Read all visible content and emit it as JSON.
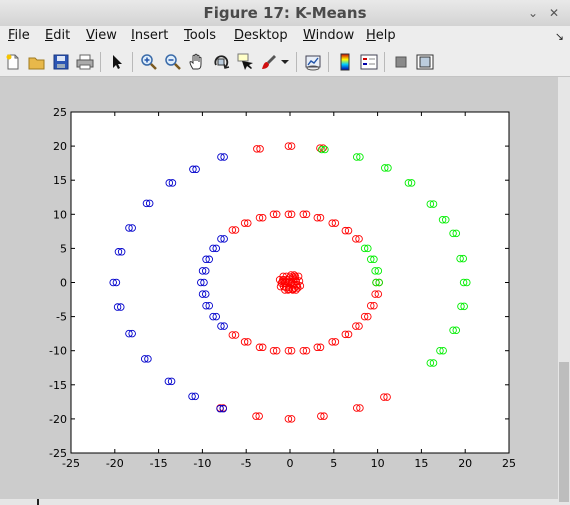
{
  "window": {
    "title": "Figure 17: K-Means"
  },
  "window_controls": [
    {
      "name": "collapse-icon",
      "glyph": "⌄"
    },
    {
      "name": "close-icon",
      "glyph": "✕"
    }
  ],
  "menu": [
    {
      "key": "file",
      "label": "File",
      "mn": "F",
      "rest": "ile"
    },
    {
      "key": "edit",
      "label": "Edit",
      "mn": "E",
      "rest": "dit"
    },
    {
      "key": "view",
      "label": "View",
      "mn": "V",
      "rest": "iew"
    },
    {
      "key": "insert",
      "label": "Insert",
      "mn": "I",
      "rest": "nsert"
    },
    {
      "key": "tools",
      "label": "Tools",
      "mn": "T",
      "rest": "ools"
    },
    {
      "key": "desktop",
      "label": "Desktop",
      "mn": "D",
      "rest": "esktop"
    },
    {
      "key": "window",
      "label": "Window",
      "mn": "W",
      "rest": "indow"
    },
    {
      "key": "help",
      "label": "Help",
      "mn": "H",
      "rest": "elp"
    }
  ],
  "toolbar": {
    "buttons": [
      "new-figure-icon",
      "open-file-icon",
      "save-icon",
      "print-icon",
      "edit-plot-arrow-icon",
      "zoom-in-icon",
      "zoom-out-icon",
      "pan-hand-icon",
      "rotate-3d-icon",
      "data-cursor-icon",
      "brush-icon",
      "brush-menu-chevron-icon",
      "link-plot-icon",
      "insert-colorbar-icon",
      "insert-legend-icon",
      "hide-plot-tools-icon",
      "show-plot-tools-icon"
    ]
  },
  "colors": {
    "cluster_red": "#ff0000",
    "cluster_green": "#00ee00",
    "cluster_blue": "#0000cc"
  },
  "chart_data": {
    "type": "scatter",
    "title": "",
    "xlabel": "",
    "ylabel": "",
    "xlim": [
      -25,
      25
    ],
    "ylim": [
      -25,
      25
    ],
    "xticks": [
      -25,
      -20,
      -15,
      -10,
      -5,
      0,
      5,
      10,
      15,
      20,
      25
    ],
    "yticks": [
      -25,
      -20,
      -15,
      -10,
      -5,
      0,
      5,
      10,
      15,
      20,
      25
    ],
    "grid": false,
    "marker": "open-circle",
    "structure": "three concentric rings (radius ~0-1, ~10, ~20), points clustered into 3 groups",
    "series": [
      {
        "color": "#ff0000",
        "points": [
          [
            0.2,
            0.8
          ],
          [
            -0.5,
            0.4
          ],
          [
            0.6,
            -0.3
          ],
          [
            -0.3,
            -0.7
          ],
          [
            0.9,
            0.2
          ],
          [
            -0.8,
            -0.1
          ],
          [
            0.1,
            -1.0
          ],
          [
            0.4,
            0.5
          ],
          [
            -0.6,
            0.9
          ],
          [
            0.7,
            -0.8
          ],
          [
            -0.2,
            0.1
          ],
          [
            1.0,
            -0.5
          ],
          [
            -1.0,
            0.4
          ],
          [
            0.3,
            1.1
          ],
          [
            -0.4,
            -1.1
          ],
          [
            0.8,
            0.9
          ],
          [
            -0.9,
            -0.6
          ],
          [
            0.0,
            0.0
          ],
          [
            0.5,
            -1.1
          ],
          [
            -0.7,
            0.1
          ],
          [
            0,
            10
          ],
          [
            1.7,
            10.0
          ],
          [
            3.3,
            9.5
          ],
          [
            5.0,
            8.7
          ],
          [
            6.5,
            7.6
          ],
          [
            7.7,
            6.4
          ],
          [
            -1.7,
            10.0
          ],
          [
            -3.3,
            9.5
          ],
          [
            -5.0,
            8.7
          ],
          [
            -6.4,
            7.7
          ],
          [
            0,
            -10
          ],
          [
            1.7,
            -10.0
          ],
          [
            3.3,
            -9.5
          ],
          [
            5.0,
            -8.7
          ],
          [
            6.5,
            -7.6
          ],
          [
            7.7,
            -6.4
          ],
          [
            -1.7,
            -10.0
          ],
          [
            -3.3,
            -9.5
          ],
          [
            -5.0,
            -8.7
          ],
          [
            -6.4,
            -7.7
          ],
          [
            8.7,
            -5.0
          ],
          [
            9.4,
            -3.4
          ],
          [
            9.9,
            -1.7
          ],
          [
            10.0,
            0.0
          ],
          [
            0,
            20
          ],
          [
            3.6,
            19.7
          ],
          [
            -3.6,
            19.6
          ],
          [
            0,
            -20
          ],
          [
            3.7,
            -19.6
          ],
          [
            -3.7,
            -19.6
          ],
          [
            7.8,
            -18.4
          ],
          [
            10.9,
            -16.8
          ],
          [
            -7.8,
            -18.4
          ]
        ]
      },
      {
        "color": "#00ee00",
        "points": [
          [
            8.7,
            5.0
          ],
          [
            9.4,
            3.4
          ],
          [
            9.9,
            1.7
          ],
          [
            10.0,
            0.0
          ],
          [
            3.8,
            19.5
          ],
          [
            7.8,
            18.4
          ],
          [
            11.0,
            16.8
          ],
          [
            13.7,
            14.6
          ],
          [
            16.2,
            11.5
          ],
          [
            17.6,
            9.2
          ],
          [
            18.8,
            7.2
          ],
          [
            19.6,
            3.5
          ],
          [
            20.0,
            0.0
          ],
          [
            19.7,
            -3.5
          ],
          [
            18.8,
            -7.0
          ],
          [
            17.3,
            -10.0
          ],
          [
            16.2,
            -11.8
          ]
        ]
      },
      {
        "color": "#0000cc",
        "points": [
          [
            -7.7,
            6.4
          ],
          [
            -8.6,
            5.0
          ],
          [
            -9.4,
            3.4
          ],
          [
            -9.8,
            1.7
          ],
          [
            -10.0,
            0.0
          ],
          [
            -9.8,
            -1.7
          ],
          [
            -9.4,
            -3.4
          ],
          [
            -8.6,
            -5.0
          ],
          [
            -7.7,
            -6.4
          ],
          [
            -7.7,
            18.4
          ],
          [
            -10.9,
            16.6
          ],
          [
            -13.6,
            14.6
          ],
          [
            -16.2,
            11.6
          ],
          [
            -18.2,
            8.0
          ],
          [
            -19.4,
            4.5
          ],
          [
            -20.0,
            0.0
          ],
          [
            -19.5,
            -3.6
          ],
          [
            -18.2,
            -7.5
          ],
          [
            -16.4,
            -11.2
          ],
          [
            -13.7,
            -14.5
          ],
          [
            -11.0,
            -16.7
          ],
          [
            -7.8,
            -18.5
          ]
        ]
      }
    ]
  }
}
